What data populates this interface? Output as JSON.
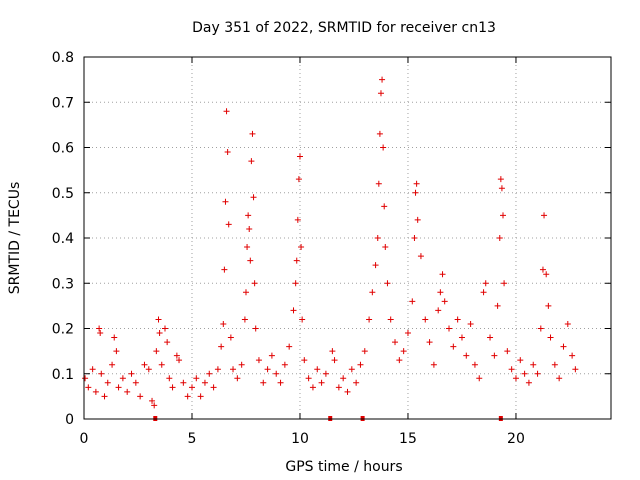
{
  "chart_data": {
    "type": "scatter",
    "title": "Day 351 of 2022, SRMTID for receiver cn13",
    "xlabel": "GPS time / hours",
    "ylabel": "SRMTID / TECUs",
    "xlim": [
      0,
      24.4
    ],
    "ylim": [
      0,
      0.8
    ],
    "xticks": [
      0,
      5,
      10,
      15,
      20
    ],
    "xtick_labels": [
      "0",
      "5",
      "10",
      "15",
      "20"
    ],
    "yticks": [
      0,
      0.1,
      0.2,
      0.3,
      0.4,
      0.5,
      0.6,
      0.7,
      0.8
    ],
    "ytick_labels": [
      "0",
      "0.1",
      "0.2",
      "0.3",
      "0.4",
      "0.5",
      "0.6",
      "0.7",
      "0.8"
    ],
    "grid": true,
    "marker": "plus",
    "color": "#e00000",
    "gap_markers_x": [
      3.3,
      11.4,
      12.9,
      19.3
    ],
    "series": [
      {
        "name": "cn13",
        "points": [
          [
            0.05,
            0.09
          ],
          [
            0.2,
            0.07
          ],
          [
            0.4,
            0.11
          ],
          [
            0.55,
            0.06
          ],
          [
            0.7,
            0.2
          ],
          [
            0.75,
            0.19
          ],
          [
            0.8,
            0.1
          ],
          [
            0.95,
            0.05
          ],
          [
            1.1,
            0.08
          ],
          [
            1.3,
            0.12
          ],
          [
            1.4,
            0.18
          ],
          [
            1.5,
            0.15
          ],
          [
            1.6,
            0.07
          ],
          [
            1.8,
            0.09
          ],
          [
            2.0,
            0.06
          ],
          [
            2.2,
            0.1
          ],
          [
            2.4,
            0.08
          ],
          [
            2.6,
            0.05
          ],
          [
            2.8,
            0.12
          ],
          [
            3.0,
            0.11
          ],
          [
            3.15,
            0.04
          ],
          [
            3.25,
            0.03
          ],
          [
            3.35,
            0.15
          ],
          [
            3.45,
            0.22
          ],
          [
            3.5,
            0.19
          ],
          [
            3.6,
            0.12
          ],
          [
            3.75,
            0.2
          ],
          [
            3.85,
            0.17
          ],
          [
            3.95,
            0.09
          ],
          [
            4.1,
            0.07
          ],
          [
            4.3,
            0.14
          ],
          [
            4.4,
            0.13
          ],
          [
            4.6,
            0.08
          ],
          [
            4.8,
            0.05
          ],
          [
            5.0,
            0.07
          ],
          [
            5.2,
            0.09
          ],
          [
            5.4,
            0.05
          ],
          [
            5.6,
            0.08
          ],
          [
            5.8,
            0.1
          ],
          [
            6.0,
            0.07
          ],
          [
            6.2,
            0.11
          ],
          [
            6.35,
            0.16
          ],
          [
            6.45,
            0.21
          ],
          [
            6.5,
            0.33
          ],
          [
            6.55,
            0.48
          ],
          [
            6.6,
            0.68
          ],
          [
            6.65,
            0.59
          ],
          [
            6.7,
            0.43
          ],
          [
            6.8,
            0.18
          ],
          [
            6.9,
            0.11
          ],
          [
            7.1,
            0.09
          ],
          [
            7.3,
            0.12
          ],
          [
            7.45,
            0.22
          ],
          [
            7.5,
            0.28
          ],
          [
            7.55,
            0.38
          ],
          [
            7.6,
            0.45
          ],
          [
            7.65,
            0.42
          ],
          [
            7.7,
            0.35
          ],
          [
            7.75,
            0.57
          ],
          [
            7.8,
            0.63
          ],
          [
            7.85,
            0.49
          ],
          [
            7.9,
            0.3
          ],
          [
            7.95,
            0.2
          ],
          [
            8.1,
            0.13
          ],
          [
            8.3,
            0.08
          ],
          [
            8.5,
            0.11
          ],
          [
            8.7,
            0.14
          ],
          [
            8.9,
            0.1
          ],
          [
            9.1,
            0.08
          ],
          [
            9.3,
            0.12
          ],
          [
            9.5,
            0.16
          ],
          [
            9.7,
            0.24
          ],
          [
            9.8,
            0.3
          ],
          [
            9.85,
            0.35
          ],
          [
            9.9,
            0.44
          ],
          [
            9.95,
            0.53
          ],
          [
            10.0,
            0.58
          ],
          [
            10.05,
            0.38
          ],
          [
            10.1,
            0.22
          ],
          [
            10.2,
            0.13
          ],
          [
            10.4,
            0.09
          ],
          [
            10.6,
            0.07
          ],
          [
            10.8,
            0.11
          ],
          [
            11.0,
            0.08
          ],
          [
            11.2,
            0.1
          ],
          [
            11.5,
            0.15
          ],
          [
            11.6,
            0.13
          ],
          [
            11.8,
            0.07
          ],
          [
            12.0,
            0.09
          ],
          [
            12.2,
            0.06
          ],
          [
            12.4,
            0.11
          ],
          [
            12.6,
            0.08
          ],
          [
            12.8,
            0.12
          ],
          [
            13.0,
            0.15
          ],
          [
            13.2,
            0.22
          ],
          [
            13.35,
            0.28
          ],
          [
            13.5,
            0.34
          ],
          [
            13.6,
            0.4
          ],
          [
            13.65,
            0.52
          ],
          [
            13.7,
            0.63
          ],
          [
            13.75,
            0.72
          ],
          [
            13.8,
            0.75
          ],
          [
            13.85,
            0.6
          ],
          [
            13.9,
            0.47
          ],
          [
            13.95,
            0.38
          ],
          [
            14.05,
            0.3
          ],
          [
            14.2,
            0.22
          ],
          [
            14.4,
            0.17
          ],
          [
            14.6,
            0.13
          ],
          [
            14.8,
            0.15
          ],
          [
            15.0,
            0.19
          ],
          [
            15.2,
            0.26
          ],
          [
            15.3,
            0.4
          ],
          [
            15.35,
            0.5
          ],
          [
            15.4,
            0.52
          ],
          [
            15.45,
            0.44
          ],
          [
            15.6,
            0.36
          ],
          [
            15.8,
            0.22
          ],
          [
            16.0,
            0.17
          ],
          [
            16.2,
            0.12
          ],
          [
            16.4,
            0.24
          ],
          [
            16.5,
            0.28
          ],
          [
            16.6,
            0.32
          ],
          [
            16.7,
            0.26
          ],
          [
            16.9,
            0.2
          ],
          [
            17.1,
            0.16
          ],
          [
            17.3,
            0.22
          ],
          [
            17.5,
            0.18
          ],
          [
            17.7,
            0.14
          ],
          [
            17.9,
            0.21
          ],
          [
            18.1,
            0.12
          ],
          [
            18.3,
            0.09
          ],
          [
            18.5,
            0.28
          ],
          [
            18.6,
            0.3
          ],
          [
            18.8,
            0.18
          ],
          [
            19.0,
            0.14
          ],
          [
            19.15,
            0.25
          ],
          [
            19.25,
            0.4
          ],
          [
            19.3,
            0.53
          ],
          [
            19.35,
            0.51
          ],
          [
            19.4,
            0.45
          ],
          [
            19.45,
            0.3
          ],
          [
            19.6,
            0.15
          ],
          [
            19.8,
            0.11
          ],
          [
            20.0,
            0.09
          ],
          [
            20.2,
            0.13
          ],
          [
            20.4,
            0.1
          ],
          [
            20.6,
            0.08
          ],
          [
            20.8,
            0.12
          ],
          [
            21.0,
            0.1
          ],
          [
            21.15,
            0.2
          ],
          [
            21.25,
            0.33
          ],
          [
            21.3,
            0.45
          ],
          [
            21.4,
            0.32
          ],
          [
            21.5,
            0.25
          ],
          [
            21.6,
            0.18
          ],
          [
            21.8,
            0.12
          ],
          [
            22.0,
            0.09
          ],
          [
            22.2,
            0.16
          ],
          [
            22.4,
            0.21
          ],
          [
            22.6,
            0.14
          ],
          [
            22.75,
            0.11
          ]
        ]
      }
    ]
  }
}
